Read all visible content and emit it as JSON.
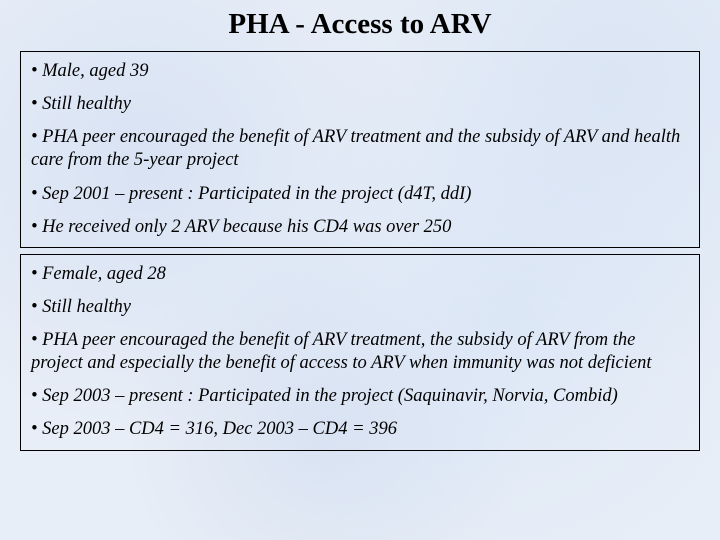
{
  "title": "PHA - Access to ARV",
  "case1": {
    "b1": "• Male, aged 39",
    "b2": "• Still healthy",
    "b3": "• PHA peer encouraged the benefit of ARV treatment and the subsidy of ARV and health care from the 5-year project",
    "b4": "• Sep 2001 – present : Participated in the project (d4T, ddI)",
    "b5": "• He received only 2 ARV because his CD4 was over 250"
  },
  "case2": {
    "b1": "• Female, aged 28",
    "b2": "• Still healthy",
    "b3": "• PHA peer encouraged the benefit of ARV treatment, the subsidy of ARV from the project and especially the benefit of access to ARV when immunity was not deficient",
    "b4": "• Sep 2003 – present : Participated in the project (Saquinavir, Norvia, Combid)",
    "b5": "• Sep 2003 – CD4 = 316, Dec 2003 – CD4 = 396"
  }
}
